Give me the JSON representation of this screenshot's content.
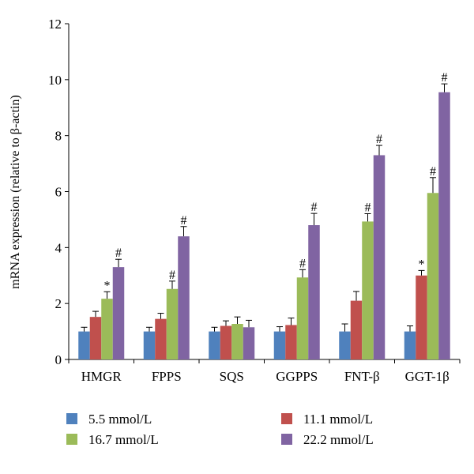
{
  "chart_data": {
    "type": "bar",
    "categories": [
      "HMGR",
      "FPPS",
      "SQS",
      "GGPPS",
      "FNT-β",
      "GGT-1β"
    ],
    "ylabel": "mRNA expression (relative to β-actin)",
    "ylim": [
      0,
      12
    ],
    "yticks": [
      0,
      2,
      4,
      6,
      8,
      10,
      12
    ],
    "grid": false,
    "legend_position": "bottom",
    "series": [
      {
        "name": "5.5 mmol/L",
        "color": "#4f81bd",
        "values": [
          1.0,
          1.0,
          1.0,
          1.0,
          1.0,
          1.0
        ],
        "errors": [
          0.15,
          0.15,
          0.15,
          0.17,
          0.27,
          0.2
        ],
        "annotations": [
          "",
          "",
          "",
          "",
          "",
          ""
        ]
      },
      {
        "name": "11.1 mmol/L",
        "color": "#c0504d",
        "values": [
          1.52,
          1.45,
          1.2,
          1.23,
          2.1,
          3.0
        ],
        "errors": [
          0.2,
          0.2,
          0.18,
          0.25,
          0.33,
          0.18
        ],
        "annotations": [
          "",
          "",
          "",
          "",
          "",
          "*"
        ]
      },
      {
        "name": "16.7 mmol/L",
        "color": "#9bbb59",
        "values": [
          2.17,
          2.52,
          1.27,
          2.93,
          4.93,
          5.95
        ],
        "errors": [
          0.25,
          0.28,
          0.25,
          0.28,
          0.28,
          0.55
        ],
        "annotations": [
          "*",
          "#",
          "",
          "#",
          "#",
          "#"
        ]
      },
      {
        "name": "22.2 mmol/L",
        "color": "#8064a2",
        "values": [
          3.3,
          4.4,
          1.15,
          4.8,
          7.3,
          9.55
        ],
        "errors": [
          0.28,
          0.35,
          0.25,
          0.42,
          0.35,
          0.3
        ],
        "annotations": [
          "#",
          "#",
          "",
          "#",
          "#",
          "#"
        ]
      }
    ]
  }
}
